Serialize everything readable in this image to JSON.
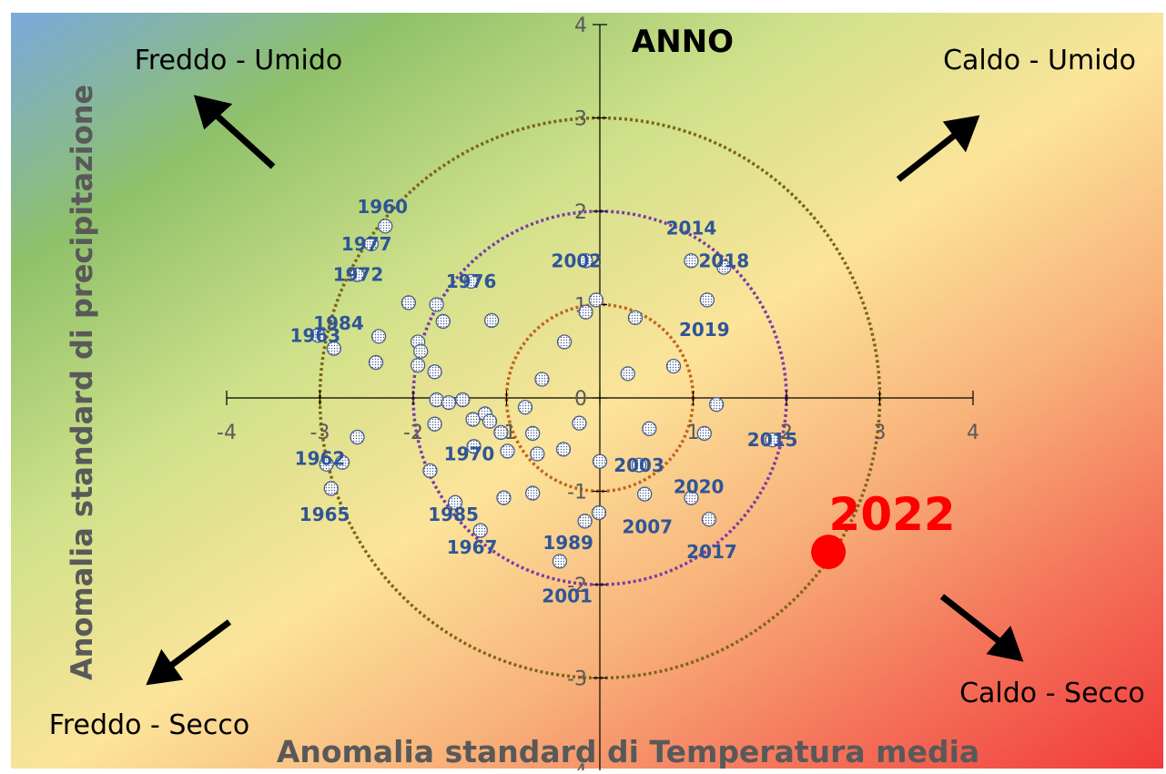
{
  "chart_data": {
    "type": "scatter",
    "title": "ANNO",
    "xlabel": "Anomalia standard di Temperatura media",
    "ylabel": "Anomalia standard di precipitazione",
    "xlim": [
      -4,
      4
    ],
    "ylim": [
      -4,
      4
    ],
    "xticks": [
      "-4",
      "-3",
      "-2",
      "-1",
      "0",
      "1",
      "2",
      "3",
      "4"
    ],
    "yticks": [
      "-4",
      "-3",
      "-2",
      "-1",
      "0",
      "1",
      "2",
      "3",
      "4"
    ],
    "grid": false,
    "circles": [
      1,
      2,
      3
    ],
    "circle_colors": [
      "#c0651e",
      "#7a3ca8",
      "#7b6517"
    ],
    "quadrants": {
      "top_left": "Freddo - Umido",
      "top_right": "Caldo - Umido",
      "bottom_left": "Freddo - Secco",
      "bottom_right": "Caldo - Secco"
    },
    "highlight": {
      "label": "2022",
      "x": 2.45,
      "y": -1.65,
      "color": "#ff0000"
    },
    "point_labels": [
      {
        "label": "1960",
        "x": -2.33,
        "y": 2.05
      },
      {
        "label": "1977",
        "x": -2.5,
        "y": 1.65
      },
      {
        "label": "1972",
        "x": -2.59,
        "y": 1.32
      },
      {
        "label": "1976",
        "x": -1.38,
        "y": 1.25
      },
      {
        "label": "1963",
        "x": -3.05,
        "y": 0.67
      },
      {
        "label": "1984",
        "x": -2.8,
        "y": 0.8
      },
      {
        "label": "1962",
        "x": -3.0,
        "y": -0.65
      },
      {
        "label": "1965",
        "x": -2.95,
        "y": -1.25
      },
      {
        "label": "1970",
        "x": -1.4,
        "y": -0.6
      },
      {
        "label": "1985",
        "x": -1.57,
        "y": -1.25
      },
      {
        "label": "1967",
        "x": -1.37,
        "y": -1.6
      },
      {
        "label": "2002",
        "x": -0.25,
        "y": 1.47
      },
      {
        "label": "2014",
        "x": 0.98,
        "y": 1.82
      },
      {
        "label": "2018",
        "x": 1.33,
        "y": 1.47
      },
      {
        "label": "2019",
        "x": 1.12,
        "y": 0.73
      },
      {
        "label": "2015",
        "x": 1.85,
        "y": -0.45
      },
      {
        "label": "2003",
        "x": 0.42,
        "y": -0.72
      },
      {
        "label": "2020",
        "x": 1.06,
        "y": -0.95
      },
      {
        "label": "2007",
        "x": 0.51,
        "y": -1.38
      },
      {
        "label": "2017",
        "x": 1.2,
        "y": -1.65
      },
      {
        "label": "1989",
        "x": -0.34,
        "y": -1.55
      },
      {
        "label": "2001",
        "x": -0.35,
        "y": -2.12
      }
    ],
    "points": [
      {
        "x": -2.3,
        "y": 1.84
      },
      {
        "x": -2.45,
        "y": 1.65
      },
      {
        "x": -2.6,
        "y": 1.32
      },
      {
        "x": -1.38,
        "y": 1.25
      },
      {
        "x": -3.02,
        "y": 0.67
      },
      {
        "x": -2.85,
        "y": 0.53
      },
      {
        "x": -2.05,
        "y": 1.02
      },
      {
        "x": -1.75,
        "y": 1.0
      },
      {
        "x": -1.68,
        "y": 0.82
      },
      {
        "x": -1.16,
        "y": 0.83
      },
      {
        "x": -2.37,
        "y": 0.66
      },
      {
        "x": -1.95,
        "y": 0.6
      },
      {
        "x": -1.92,
        "y": 0.5
      },
      {
        "x": -2.4,
        "y": 0.38
      },
      {
        "x": -1.95,
        "y": 0.35
      },
      {
        "x": -1.77,
        "y": 0.28
      },
      {
        "x": -1.75,
        "y": -0.02
      },
      {
        "x": -1.62,
        "y": -0.05
      },
      {
        "x": -1.47,
        "y": -0.02
      },
      {
        "x": -1.36,
        "y": -0.23
      },
      {
        "x": -1.23,
        "y": -0.17
      },
      {
        "x": -1.18,
        "y": -0.25
      },
      {
        "x": -1.06,
        "y": -0.37
      },
      {
        "x": -0.8,
        "y": -0.1
      },
      {
        "x": -0.72,
        "y": -0.38
      },
      {
        "x": -0.22,
        "y": -0.27
      },
      {
        "x": 0.53,
        "y": -0.33
      },
      {
        "x": 1.12,
        "y": -0.38
      },
      {
        "x": 1.25,
        "y": -0.07
      },
      {
        "x": 0.3,
        "y": 0.26
      },
      {
        "x": 0.79,
        "y": 0.34
      },
      {
        "x": -0.62,
        "y": 0.2
      },
      {
        "x": -0.38,
        "y": 0.6
      },
      {
        "x": -0.15,
        "y": 0.92
      },
      {
        "x": -0.04,
        "y": 1.05
      },
      {
        "x": 0.38,
        "y": 0.86
      },
      {
        "x": -0.15,
        "y": 1.47
      },
      {
        "x": 0.98,
        "y": 1.47
      },
      {
        "x": 1.33,
        "y": 1.4
      },
      {
        "x": 1.15,
        "y": 1.05
      },
      {
        "x": 1.85,
        "y": -0.45
      },
      {
        "x": -1.77,
        "y": -0.28
      },
      {
        "x": -1.35,
        "y": -0.52
      },
      {
        "x": -0.99,
        "y": -0.57
      },
      {
        "x": -0.67,
        "y": -0.6
      },
      {
        "x": -0.39,
        "y": -0.55
      },
      {
        "x": 0.0,
        "y": -0.68
      },
      {
        "x": 0.42,
        "y": -0.72
      },
      {
        "x": -2.6,
        "y": -0.42
      },
      {
        "x": -2.93,
        "y": -0.71
      },
      {
        "x": -2.76,
        "y": -0.69
      },
      {
        "x": -2.88,
        "y": -0.97
      },
      {
        "x": -1.82,
        "y": -0.78
      },
      {
        "x": -1.55,
        "y": -1.12
      },
      {
        "x": -1.03,
        "y": -1.07
      },
      {
        "x": -0.72,
        "y": -1.02
      },
      {
        "x": -1.28,
        "y": -1.42
      },
      {
        "x": -0.16,
        "y": -1.32
      },
      {
        "x": -0.01,
        "y": -1.23
      },
      {
        "x": 0.48,
        "y": -1.03
      },
      {
        "x": 0.98,
        "y": -1.07
      },
      {
        "x": 1.17,
        "y": -1.3
      },
      {
        "x": -0.43,
        "y": -1.75
      }
    ]
  }
}
